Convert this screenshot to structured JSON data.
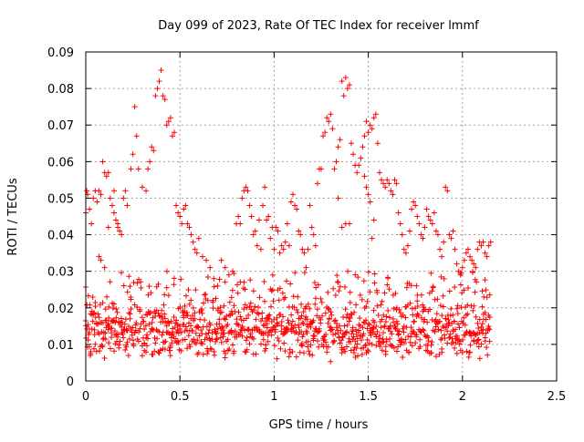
{
  "chart_data": {
    "type": "scatter",
    "title": "Day 099 of 2023, Rate Of TEC Index for receiver lmmf",
    "xlabel": "GPS time / hours",
    "ylabel": "ROTI / TECUs",
    "xlim": [
      0,
      2.5
    ],
    "ylim": [
      0,
      0.09
    ],
    "xticks": [
      0,
      0.5,
      1,
      1.5,
      2,
      2.5
    ],
    "xtick_labels": [
      "0",
      "0.5",
      "1",
      "1.5",
      "2",
      "2.5"
    ],
    "yticks": [
      0,
      0.01,
      0.02,
      0.03,
      0.04,
      0.05,
      0.06,
      0.07,
      0.08,
      0.09
    ],
    "ytick_labels": [
      "0",
      "0.01",
      "0.02",
      "0.03",
      "0.04",
      "0.05",
      "0.06",
      "0.07",
      "0.08",
      "0.09"
    ],
    "grid": true,
    "marker": "plus",
    "series": [
      {
        "color": "#ff0000",
        "points": [
          [
            0.0,
            0.046
          ],
          [
            0.005,
            0.052
          ],
          [
            0.01,
            0.051
          ],
          [
            0.02,
            0.047
          ],
          [
            0.03,
            0.043
          ],
          [
            0.04,
            0.05
          ],
          [
            0.05,
            0.052
          ],
          [
            0.06,
            0.049
          ],
          [
            0.07,
            0.052
          ],
          [
            0.08,
            0.051
          ],
          [
            0.09,
            0.06
          ],
          [
            0.1,
            0.057
          ],
          [
            0.11,
            0.056
          ],
          [
            0.12,
            0.057
          ],
          [
            0.13,
            0.05
          ],
          [
            0.14,
            0.048
          ],
          [
            0.15,
            0.046
          ],
          [
            0.16,
            0.044
          ],
          [
            0.17,
            0.042
          ],
          [
            0.18,
            0.041
          ],
          [
            0.19,
            0.04
          ],
          [
            0.2,
            0.05
          ],
          [
            0.21,
            0.052
          ],
          [
            0.22,
            0.048
          ],
          [
            0.07,
            0.034
          ],
          [
            0.08,
            0.033
          ],
          [
            0.1,
            0.031
          ],
          [
            0.12,
            0.042
          ],
          [
            0.15,
            0.052
          ],
          [
            0.17,
            0.043
          ],
          [
            0.24,
            0.058
          ],
          [
            0.25,
            0.062
          ],
          [
            0.26,
            0.075
          ],
          [
            0.27,
            0.067
          ],
          [
            0.28,
            0.058
          ],
          [
            0.3,
            0.053
          ],
          [
            0.32,
            0.052
          ],
          [
            0.33,
            0.058
          ],
          [
            0.34,
            0.06
          ],
          [
            0.35,
            0.064
          ],
          [
            0.36,
            0.063
          ],
          [
            0.37,
            0.078
          ],
          [
            0.38,
            0.08
          ],
          [
            0.39,
            0.082
          ],
          [
            0.4,
            0.085
          ],
          [
            0.41,
            0.078
          ],
          [
            0.42,
            0.077
          ],
          [
            0.43,
            0.07
          ],
          [
            0.44,
            0.071
          ],
          [
            0.45,
            0.072
          ],
          [
            0.46,
            0.067
          ],
          [
            0.47,
            0.068
          ],
          [
            0.48,
            0.048
          ],
          [
            0.49,
            0.046
          ],
          [
            0.5,
            0.045
          ],
          [
            0.51,
            0.043
          ],
          [
            0.52,
            0.047
          ],
          [
            0.53,
            0.048
          ],
          [
            0.54,
            0.043
          ],
          [
            0.55,
            0.042
          ],
          [
            0.56,
            0.04
          ],
          [
            0.57,
            0.038
          ],
          [
            0.58,
            0.036
          ],
          [
            0.59,
            0.035
          ],
          [
            0.6,
            0.039
          ],
          [
            0.62,
            0.034
          ],
          [
            0.64,
            0.033
          ],
          [
            0.66,
            0.031
          ],
          [
            0.68,
            0.028
          ],
          [
            0.7,
            0.026
          ],
          [
            0.72,
            0.033
          ],
          [
            0.74,
            0.031
          ],
          [
            0.76,
            0.029
          ],
          [
            0.78,
            0.03
          ],
          [
            0.8,
            0.043
          ],
          [
            0.81,
            0.045
          ],
          [
            0.82,
            0.043
          ],
          [
            0.83,
            0.05
          ],
          [
            0.84,
            0.052
          ],
          [
            0.85,
            0.053
          ],
          [
            0.86,
            0.052
          ],
          [
            0.87,
            0.048
          ],
          [
            0.88,
            0.045
          ],
          [
            0.89,
            0.04
          ],
          [
            0.9,
            0.041
          ],
          [
            0.91,
            0.037
          ],
          [
            0.92,
            0.044
          ],
          [
            0.93,
            0.036
          ],
          [
            0.94,
            0.048
          ],
          [
            0.95,
            0.053
          ],
          [
            0.96,
            0.044
          ],
          [
            0.97,
            0.045
          ],
          [
            0.98,
            0.039
          ],
          [
            0.99,
            0.042
          ],
          [
            1.0,
            0.036
          ],
          [
            1.01,
            0.042
          ],
          [
            1.02,
            0.041
          ],
          [
            1.03,
            0.035
          ],
          [
            1.04,
            0.037
          ],
          [
            1.05,
            0.036
          ],
          [
            1.06,
            0.038
          ],
          [
            1.07,
            0.043
          ],
          [
            1.08,
            0.037
          ],
          [
            1.09,
            0.049
          ],
          [
            1.1,
            0.051
          ],
          [
            1.11,
            0.048
          ],
          [
            1.12,
            0.047
          ],
          [
            1.13,
            0.041
          ],
          [
            1.14,
            0.04
          ],
          [
            1.15,
            0.036
          ],
          [
            1.16,
            0.035
          ],
          [
            1.17,
            0.031
          ],
          [
            1.18,
            0.036
          ],
          [
            1.19,
            0.048
          ],
          [
            1.2,
            0.042
          ],
          [
            1.21,
            0.04
          ],
          [
            1.22,
            0.037
          ],
          [
            1.23,
            0.054
          ],
          [
            1.24,
            0.058
          ],
          [
            1.25,
            0.058
          ],
          [
            1.26,
            0.067
          ],
          [
            1.27,
            0.068
          ],
          [
            1.28,
            0.072
          ],
          [
            1.29,
            0.071
          ],
          [
            1.3,
            0.073
          ],
          [
            1.31,
            0.069
          ],
          [
            1.32,
            0.058
          ],
          [
            1.33,
            0.06
          ],
          [
            1.34,
            0.064
          ],
          [
            1.35,
            0.066
          ],
          [
            1.36,
            0.082
          ],
          [
            1.37,
            0.078
          ],
          [
            1.38,
            0.083
          ],
          [
            1.39,
            0.08
          ],
          [
            1.4,
            0.081
          ],
          [
            1.41,
            0.065
          ],
          [
            1.42,
            0.062
          ],
          [
            1.43,
            0.059
          ],
          [
            1.44,
            0.057
          ],
          [
            1.45,
            0.059
          ],
          [
            1.46,
            0.061
          ],
          [
            1.47,
            0.064
          ],
          [
            1.48,
            0.067
          ],
          [
            1.49,
            0.071
          ],
          [
            1.5,
            0.068
          ],
          [
            1.51,
            0.07
          ],
          [
            1.52,
            0.069
          ],
          [
            1.53,
            0.072
          ],
          [
            1.54,
            0.073
          ],
          [
            1.55,
            0.065
          ],
          [
            1.48,
            0.056
          ],
          [
            1.49,
            0.053
          ],
          [
            1.5,
            0.051
          ],
          [
            1.51,
            0.049
          ],
          [
            1.52,
            0.039
          ],
          [
            1.53,
            0.044
          ],
          [
            1.4,
            0.043
          ],
          [
            1.38,
            0.043
          ],
          [
            1.36,
            0.042
          ],
          [
            1.34,
            0.05
          ],
          [
            1.56,
            0.057
          ],
          [
            1.57,
            0.055
          ],
          [
            1.58,
            0.054
          ],
          [
            1.59,
            0.053
          ],
          [
            1.6,
            0.055
          ],
          [
            1.61,
            0.054
          ],
          [
            1.62,
            0.052
          ],
          [
            1.63,
            0.051
          ],
          [
            1.64,
            0.055
          ],
          [
            1.65,
            0.054
          ],
          [
            1.66,
            0.046
          ],
          [
            1.67,
            0.043
          ],
          [
            1.68,
            0.04
          ],
          [
            1.69,
            0.036
          ],
          [
            1.7,
            0.035
          ],
          [
            1.71,
            0.037
          ],
          [
            1.72,
            0.041
          ],
          [
            1.73,
            0.047
          ],
          [
            1.74,
            0.049
          ],
          [
            1.75,
            0.048
          ],
          [
            1.76,
            0.045
          ],
          [
            1.77,
            0.043
          ],
          [
            1.78,
            0.04
          ],
          [
            1.79,
            0.039
          ],
          [
            1.8,
            0.042
          ],
          [
            1.81,
            0.047
          ],
          [
            1.82,
            0.045
          ],
          [
            1.83,
            0.044
          ],
          [
            1.84,
            0.043
          ],
          [
            1.85,
            0.046
          ],
          [
            1.86,
            0.041
          ],
          [
            1.87,
            0.04
          ],
          [
            1.88,
            0.036
          ],
          [
            1.89,
            0.034
          ],
          [
            1.9,
            0.038
          ],
          [
            1.91,
            0.053
          ],
          [
            1.92,
            0.052
          ],
          [
            1.93,
            0.04
          ],
          [
            1.94,
            0.039
          ],
          [
            1.95,
            0.041
          ],
          [
            1.96,
            0.036
          ],
          [
            1.97,
            0.032
          ],
          [
            1.98,
            0.03
          ],
          [
            1.99,
            0.029
          ],
          [
            2.0,
            0.031
          ],
          [
            2.01,
            0.033
          ],
          [
            2.02,
            0.035
          ],
          [
            2.03,
            0.036
          ],
          [
            2.04,
            0.034
          ],
          [
            2.05,
            0.033
          ],
          [
            2.06,
            0.032
          ],
          [
            2.07,
            0.031
          ],
          [
            2.08,
            0.036
          ],
          [
            2.09,
            0.038
          ],
          [
            2.1,
            0.037
          ],
          [
            2.11,
            0.038
          ],
          [
            2.12,
            0.035
          ],
          [
            2.13,
            0.034
          ],
          [
            2.14,
            0.037
          ],
          [
            2.15,
            0.038
          ]
        ]
      }
    ],
    "dense_band": {
      "x_start": 0.0,
      "x_end": 2.15,
      "x_step": 0.0065,
      "y_base": 0.0135,
      "y_spread": 0.0085,
      "y_upper_fraction": 0.18,
      "y_upper_max": 0.03
    }
  }
}
